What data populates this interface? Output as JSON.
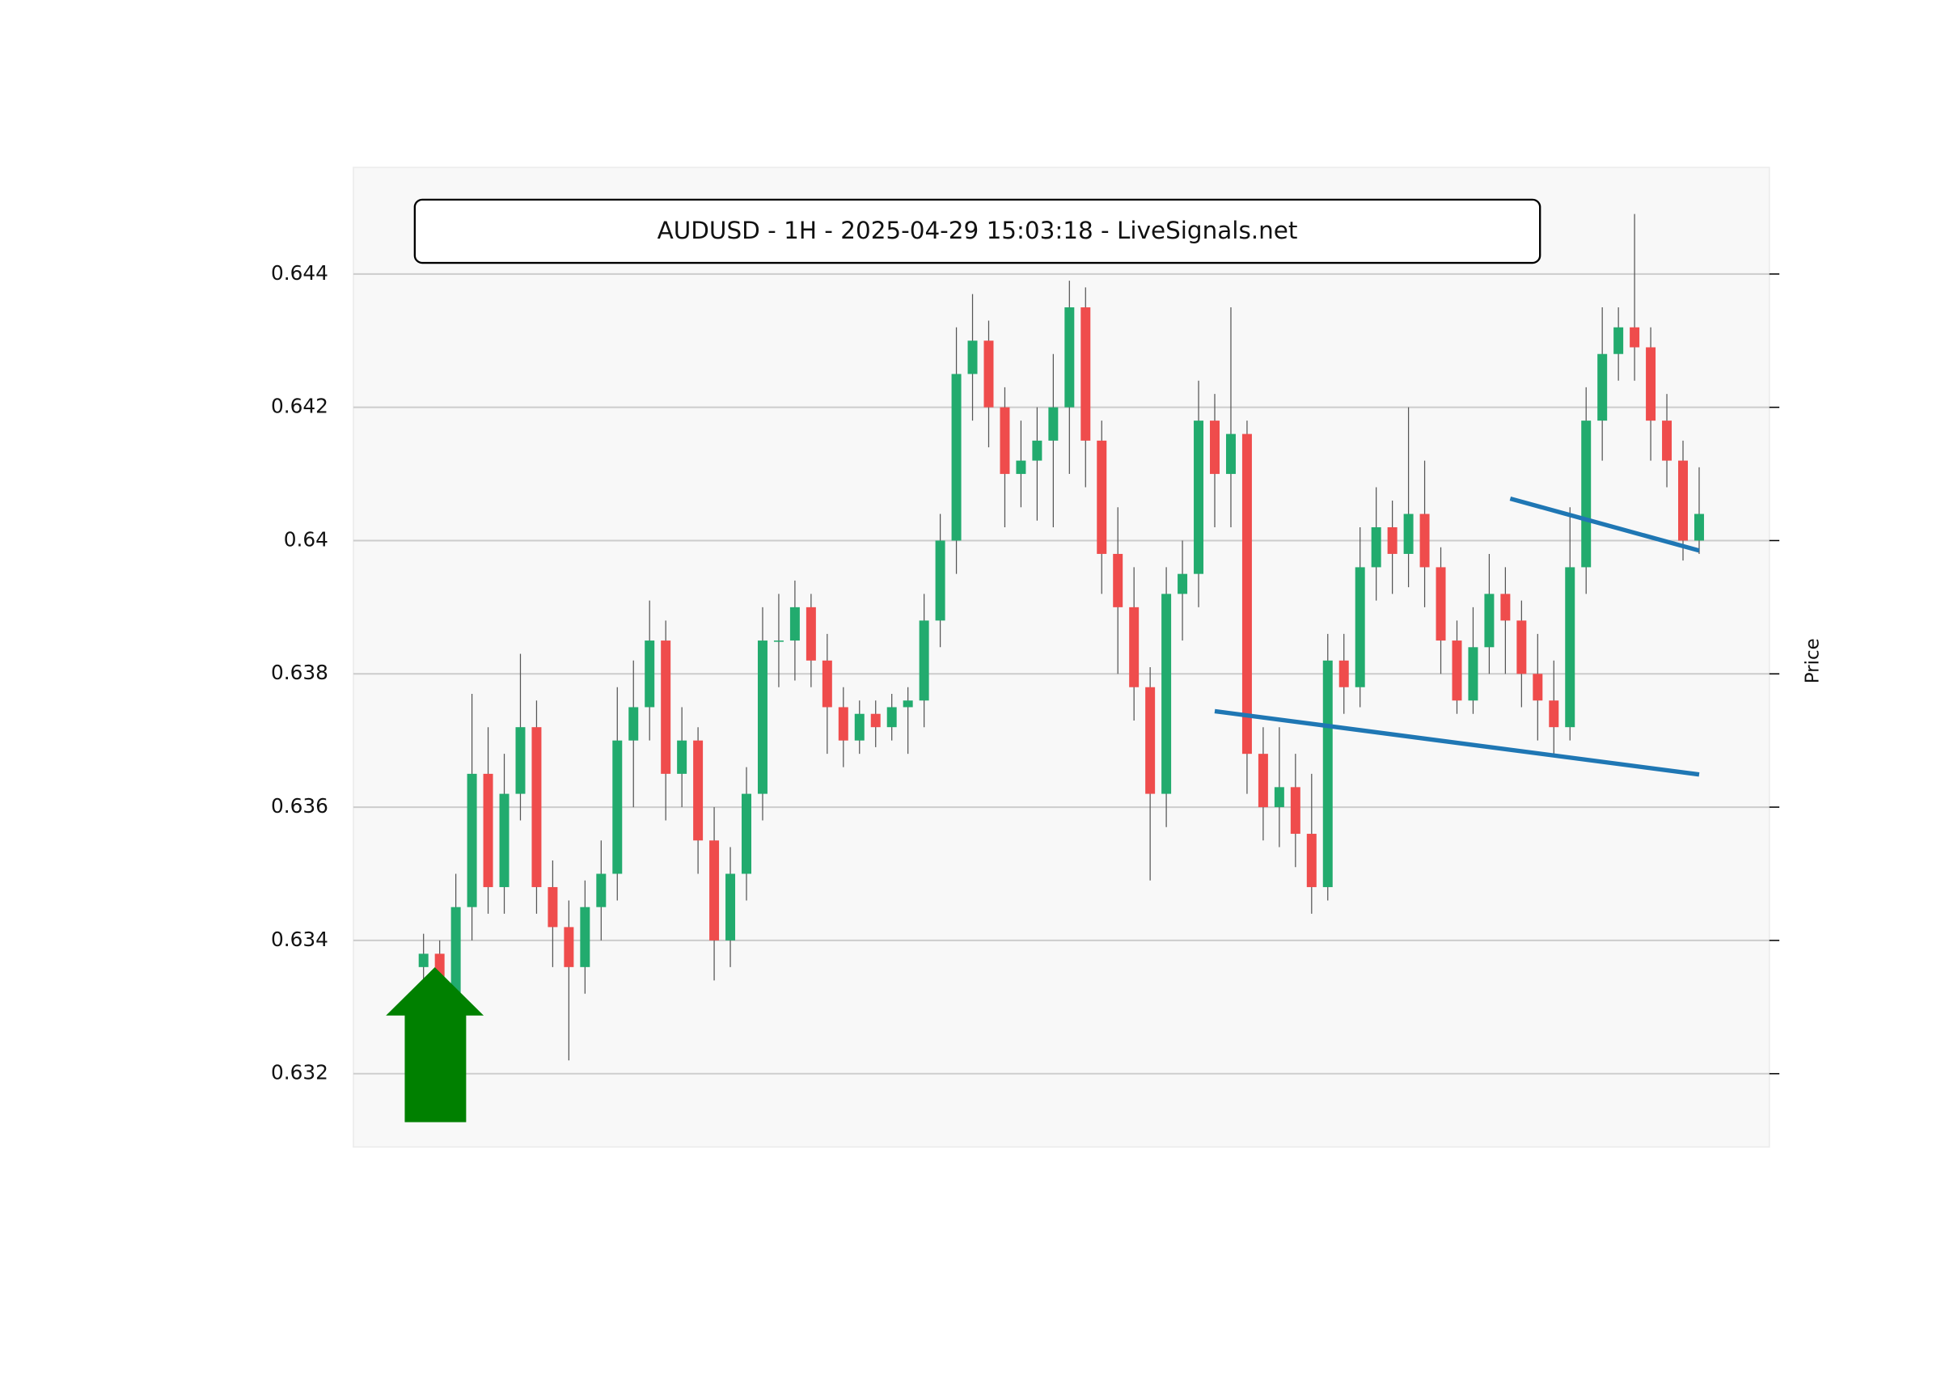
{
  "chart_data": {
    "type": "candlestick",
    "title": "AUDUSD - 1H - 2025-04-29 15:03:18 - LiveSignals.net",
    "y_label": "Price",
    "ylim": [
      0.6309,
      0.6456
    ],
    "yticks": [
      0.632,
      0.634,
      0.636,
      0.638,
      0.64,
      0.642,
      0.644
    ],
    "grid": true,
    "up_color": "#22ab6e",
    "down_color": "#ef4c4c",
    "wick_color": "#555555",
    "open": [
      0.6336,
      0.6338,
      0.6332,
      0.6345,
      0.6365,
      0.6348,
      0.6362,
      0.6372,
      0.6348,
      0.6342,
      0.6336,
      0.6345,
      0.635,
      0.637,
      0.6375,
      0.6385,
      0.6365,
      0.637,
      0.6355,
      0.634,
      0.635,
      0.6362,
      0.6385,
      0.6385,
      0.639,
      0.6382,
      0.6375,
      0.637,
      0.6374,
      0.6372,
      0.6375,
      0.6376,
      0.6388,
      0.64,
      0.6425,
      0.643,
      0.642,
      0.641,
      0.6412,
      0.6415,
      0.642,
      0.6435,
      0.6415,
      0.6398,
      0.639,
      0.6378,
      0.6362,
      0.6392,
      0.6395,
      0.6418,
      0.641,
      0.6416,
      0.6368,
      0.636,
      0.6363,
      0.6356,
      0.6348,
      0.6382,
      0.6378,
      0.6396,
      0.6402,
      0.6398,
      0.6404,
      0.6396,
      0.6385,
      0.6376,
      0.6384,
      0.6392,
      0.6388,
      0.638,
      0.6376,
      0.6372,
      0.6396,
      0.6418,
      0.6428,
      0.6432,
      0.6429,
      0.6418,
      0.6412,
      0.64
    ],
    "high": [
      0.6341,
      0.634,
      0.635,
      0.6377,
      0.6372,
      0.6368,
      0.6383,
      0.6376,
      0.6352,
      0.6346,
      0.6349,
      0.6355,
      0.6378,
      0.6382,
      0.6391,
      0.6388,
      0.6375,
      0.6372,
      0.636,
      0.6354,
      0.6366,
      0.639,
      0.6392,
      0.6394,
      0.6392,
      0.6386,
      0.6378,
      0.6376,
      0.6376,
      0.6377,
      0.6378,
      0.6392,
      0.6404,
      0.6432,
      0.6437,
      0.6433,
      0.6423,
      0.6418,
      0.642,
      0.6428,
      0.6439,
      0.6438,
      0.6418,
      0.6405,
      0.6396,
      0.6381,
      0.6396,
      0.64,
      0.6424,
      0.6422,
      0.6435,
      0.6418,
      0.6372,
      0.6372,
      0.6368,
      0.6365,
      0.6386,
      0.6386,
      0.6402,
      0.6408,
      0.6406,
      0.642,
      0.6412,
      0.6399,
      0.6388,
      0.639,
      0.6398,
      0.6396,
      0.6391,
      0.6386,
      0.6382,
      0.6405,
      0.6423,
      0.6435,
      0.6435,
      0.6449,
      0.6432,
      0.6422,
      0.6415,
      0.6411
    ],
    "low": [
      0.6333,
      0.633,
      0.6328,
      0.634,
      0.6344,
      0.6344,
      0.6358,
      0.6344,
      0.6336,
      0.6322,
      0.6332,
      0.634,
      0.6346,
      0.636,
      0.637,
      0.6358,
      0.636,
      0.635,
      0.6334,
      0.6336,
      0.6346,
      0.6358,
      0.6378,
      0.6379,
      0.6378,
      0.6368,
      0.6366,
      0.6368,
      0.6369,
      0.637,
      0.6368,
      0.6372,
      0.6384,
      0.6395,
      0.6418,
      0.6414,
      0.6402,
      0.6405,
      0.6403,
      0.6402,
      0.641,
      0.6408,
      0.6392,
      0.638,
      0.6373,
      0.6349,
      0.6357,
      0.6385,
      0.639,
      0.6402,
      0.6402,
      0.6362,
      0.6355,
      0.6354,
      0.6351,
      0.6344,
      0.6346,
      0.6374,
      0.6375,
      0.6391,
      0.6392,
      0.6393,
      0.639,
      0.638,
      0.6374,
      0.6374,
      0.638,
      0.638,
      0.6375,
      0.637,
      0.6368,
      0.637,
      0.6392,
      0.6412,
      0.6424,
      0.6424,
      0.6412,
      0.6408,
      0.6397,
      0.6398
    ],
    "close": [
      0.6338,
      0.6332,
      0.6345,
      0.6365,
      0.6348,
      0.6362,
      0.6372,
      0.6348,
      0.6342,
      0.6336,
      0.6345,
      0.635,
      0.637,
      0.6375,
      0.6385,
      0.6365,
      0.637,
      0.6355,
      0.634,
      0.635,
      0.6362,
      0.6385,
      0.6385,
      0.639,
      0.6382,
      0.6375,
      0.637,
      0.6374,
      0.6372,
      0.6375,
      0.6376,
      0.6388,
      0.64,
      0.6425,
      0.643,
      0.642,
      0.641,
      0.6412,
      0.6415,
      0.642,
      0.6435,
      0.6415,
      0.6398,
      0.639,
      0.6378,
      0.6362,
      0.6392,
      0.6395,
      0.6418,
      0.641,
      0.6416,
      0.6368,
      0.636,
      0.6363,
      0.6356,
      0.6348,
      0.6382,
      0.6378,
      0.6396,
      0.6402,
      0.6398,
      0.6404,
      0.6396,
      0.6385,
      0.6376,
      0.6384,
      0.6392,
      0.6388,
      0.638,
      0.6376,
      0.6372,
      0.6396,
      0.6418,
      0.6428,
      0.6432,
      0.6429,
      0.6418,
      0.6412,
      0.64,
      0.6404
    ],
    "trend_lines": [
      {
        "color": "#1f77b4",
        "x": [
          49,
          79
        ],
        "y": [
          0.63744,
          0.63649
        ]
      },
      {
        "color": "#1f77b4",
        "x": [
          67.3,
          79
        ],
        "y": [
          0.64063,
          0.63985
        ]
      }
    ]
  }
}
